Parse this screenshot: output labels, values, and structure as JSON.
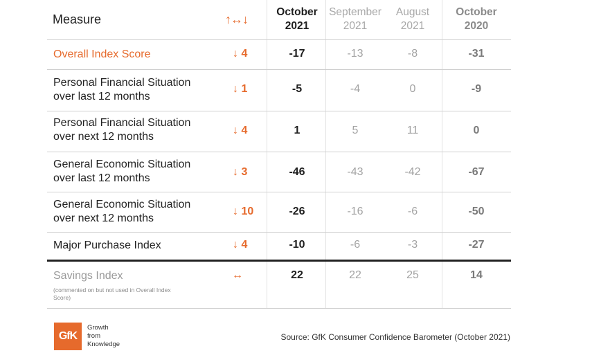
{
  "header": {
    "measure": "Measure",
    "change_symbol": "↑↔↓",
    "columns": [
      {
        "line1": "October",
        "line2": "2021"
      },
      {
        "line1": "September",
        "line2": "2021"
      },
      {
        "line1": "August",
        "line2": "2021"
      },
      {
        "line1": "October",
        "line2": "2020"
      }
    ]
  },
  "rows": [
    {
      "label": [
        "Overall Index Score"
      ],
      "change": "↓ 4",
      "values": [
        "-17",
        "-13",
        "-8",
        "-31"
      ]
    },
    {
      "label": [
        "Personal Financial Situation",
        "over last 12 months"
      ],
      "change": "↓ 1",
      "values": [
        "-5",
        "-4",
        "0",
        "-9"
      ]
    },
    {
      "label": [
        "Personal Financial Situation",
        "over next 12 months"
      ],
      "change": "↓ 4",
      "values": [
        "1",
        "5",
        "11",
        "0"
      ]
    },
    {
      "label": [
        "General Economic Situation",
        "over last 12 months"
      ],
      "change": "↓ 3",
      "values": [
        "-46",
        "-43",
        "-42",
        "-67"
      ]
    },
    {
      "label": [
        "General Economic Situation",
        "over next 12 months"
      ],
      "change": "↓ 10",
      "values": [
        "-26",
        "-16",
        "-6",
        "-50"
      ]
    },
    {
      "label": [
        "Major Purchase Index"
      ],
      "change": "↓ 4",
      "values": [
        "-10",
        "-6",
        "-3",
        "-27"
      ]
    },
    {
      "label": [
        "Savings Index"
      ],
      "change": "↔",
      "values": [
        "22",
        "22",
        "25",
        "14"
      ],
      "note": "(commented on but not used in Overall Index Score)"
    }
  ],
  "logo": {
    "mark": "GfK",
    "tagline": [
      "Growth",
      "from",
      "Knowledge"
    ]
  },
  "source": "Source: GfK Consumer Confidence Barometer (October 2021)",
  "colors": {
    "accent": "#e66a2c",
    "text": "#222222",
    "muted": "#a3a3a3",
    "rule": "#cfcfcf"
  }
}
